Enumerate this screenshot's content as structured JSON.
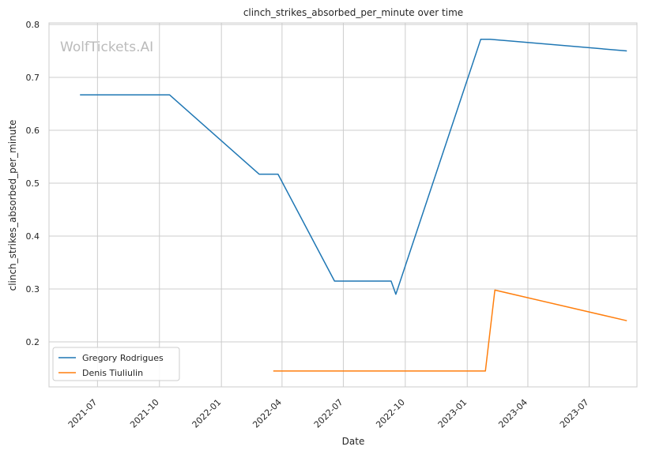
{
  "chart_data": {
    "type": "line",
    "title": "clinch_strikes_absorbed_per_minute over time",
    "xlabel": "Date",
    "ylabel": "clinch_strikes_absorbed_per_minute",
    "watermark": "WolfTickets.AI",
    "xlim": [
      "2021-04-20",
      "2023-09-10"
    ],
    "ylim": [
      0.115,
      0.803
    ],
    "x_ticks": [
      "2021-07-01",
      "2021-10-01",
      "2022-01-01",
      "2022-04-01",
      "2022-07-01",
      "2022-10-01",
      "2023-01-01",
      "2023-04-01",
      "2023-07-01"
    ],
    "x_tick_labels": [
      "2021-07",
      "2021-10",
      "2022-01",
      "2022-04",
      "2022-07",
      "2022-10",
      "2023-01",
      "2023-04",
      "2023-07"
    ],
    "y_ticks": [
      0.2,
      0.3,
      0.4,
      0.5,
      0.6,
      0.7,
      0.8
    ],
    "y_tick_labels": [
      "0.2",
      "0.3",
      "0.4",
      "0.5",
      "0.6",
      "0.7",
      "0.8"
    ],
    "grid": true,
    "legend_position": "lower-left",
    "series": [
      {
        "name": "Gregory Rodrigues",
        "color": "#1f77b4",
        "points": [
          {
            "x": "2021-06-05",
            "y": 0.667
          },
          {
            "x": "2021-10-16",
            "y": 0.667
          },
          {
            "x": "2022-02-26",
            "y": 0.517
          },
          {
            "x": "2022-03-26",
            "y": 0.517
          },
          {
            "x": "2022-06-18",
            "y": 0.315
          },
          {
            "x": "2022-09-10",
            "y": 0.315
          },
          {
            "x": "2022-09-17",
            "y": 0.29
          },
          {
            "x": "2023-01-21",
            "y": 0.772
          },
          {
            "x": "2023-02-04",
            "y": 0.772
          },
          {
            "x": "2023-08-26",
            "y": 0.75
          }
        ]
      },
      {
        "name": "Denis Tiuliulin",
        "color": "#ff7f0e",
        "points": [
          {
            "x": "2022-03-19",
            "y": 0.145
          },
          {
            "x": "2023-01-28",
            "y": 0.145
          },
          {
            "x": "2023-02-11",
            "y": 0.298
          },
          {
            "x": "2023-08-26",
            "y": 0.24
          }
        ]
      }
    ]
  }
}
